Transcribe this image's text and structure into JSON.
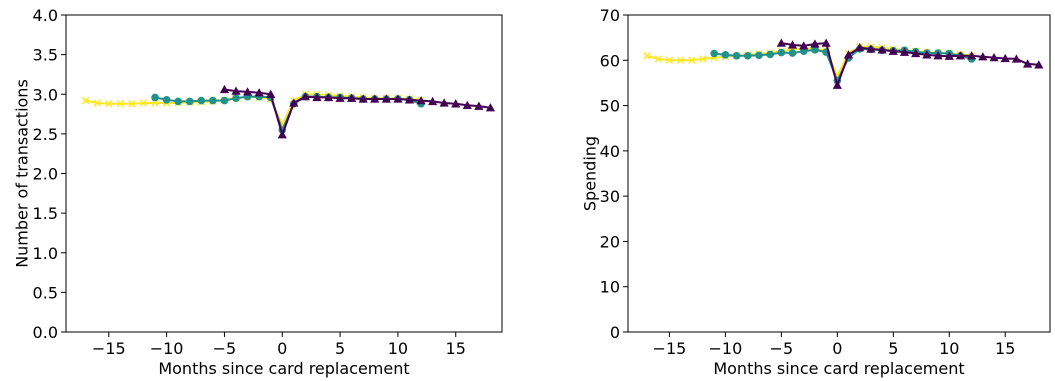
{
  "chart_data": [
    {
      "type": "line",
      "xlabel": "Months since card replacement",
      "ylabel": "Number of transactions",
      "xlim": [
        -18.7,
        19.0
      ],
      "ylim": [
        0.0,
        4.0
      ],
      "xticks": [
        -15,
        -10,
        -5,
        0,
        5,
        10,
        15
      ],
      "xtick_labels": [
        "−15",
        "−10",
        "−5",
        "0",
        "5",
        "10",
        "15"
      ],
      "yticks": [
        0.0,
        0.5,
        1.0,
        1.5,
        2.0,
        2.5,
        3.0,
        3.5,
        4.0
      ],
      "ytick_labels": [
        "0.0",
        "0.5",
        "1.0",
        "1.5",
        "2.0",
        "2.5",
        "3.0",
        "3.5",
        "4.0"
      ],
      "grid": false,
      "series": [
        {
          "color": "#fde725",
          "marker": "x",
          "x": [
            -17,
            -16,
            -15,
            -14,
            -13,
            -12,
            -11,
            -10,
            -9,
            -8,
            -7,
            -6,
            -5,
            -4,
            -3,
            -2,
            -1,
            0,
            1,
            2,
            3,
            4,
            5,
            6,
            7,
            8,
            9,
            10,
            11,
            12
          ],
          "y": [
            2.92,
            2.89,
            2.88,
            2.88,
            2.88,
            2.89,
            2.89,
            2.89,
            2.89,
            2.9,
            2.9,
            2.91,
            2.93,
            2.95,
            2.97,
            2.96,
            2.94,
            2.62,
            2.92,
            3.0,
            3.0,
            2.99,
            2.98,
            2.97,
            2.96,
            2.95,
            2.95,
            2.95,
            2.94,
            2.93
          ]
        },
        {
          "color": "#21918c",
          "marker": "o",
          "x": [
            -11,
            -10,
            -9,
            -8,
            -7,
            -6,
            -5,
            -4,
            -3,
            -2,
            -1,
            0,
            1,
            2,
            3,
            4,
            5,
            6,
            7,
            8,
            9,
            10,
            11,
            12
          ],
          "y": [
            2.96,
            2.93,
            2.91,
            2.91,
            2.92,
            2.92,
            2.92,
            2.95,
            2.97,
            2.97,
            2.96,
            2.55,
            2.88,
            2.97,
            2.97,
            2.96,
            2.96,
            2.95,
            2.94,
            2.94,
            2.94,
            2.94,
            2.93,
            2.88
          ]
        },
        {
          "color": "#440154",
          "marker": "^",
          "x": [
            -5,
            -4,
            -3,
            -2,
            -1,
            0,
            1,
            2,
            3,
            4,
            5,
            6,
            7,
            8,
            9,
            10,
            11,
            12,
            13,
            14,
            15,
            16,
            17,
            18
          ],
          "y": [
            3.06,
            3.04,
            3.03,
            3.02,
            3.0,
            2.49,
            2.89,
            2.97,
            2.96,
            2.96,
            2.95,
            2.95,
            2.94,
            2.94,
            2.94,
            2.94,
            2.93,
            2.92,
            2.91,
            2.89,
            2.88,
            2.86,
            2.85,
            2.83
          ]
        }
      ]
    },
    {
      "type": "line",
      "xlabel": "Months since card replacement",
      "ylabel": "Spending",
      "xlim": [
        -18.7,
        19.0
      ],
      "ylim": [
        0,
        70
      ],
      "xticks": [
        -15,
        -10,
        -5,
        0,
        5,
        10,
        15
      ],
      "xtick_labels": [
        "−15",
        "−10",
        "−5",
        "0",
        "5",
        "10",
        "15"
      ],
      "yticks": [
        0,
        10,
        20,
        30,
        40,
        50,
        60,
        70
      ],
      "ytick_labels": [
        "0",
        "10",
        "20",
        "30",
        "40",
        "50",
        "60",
        "70"
      ],
      "grid": false,
      "series": [
        {
          "color": "#fde725",
          "marker": "x",
          "x": [
            -17,
            -16,
            -15,
            -14,
            -13,
            -12,
            -11,
            -10,
            -9,
            -8,
            -7,
            -6,
            -5,
            -4,
            -3,
            -2,
            -1,
            0,
            1,
            2,
            3,
            4,
            5,
            6,
            7,
            8,
            9,
            10,
            11,
            12
          ],
          "y": [
            61.0,
            60.3,
            60.0,
            60.0,
            60.0,
            60.3,
            60.6,
            60.8,
            61.0,
            61.2,
            61.4,
            61.6,
            62.0,
            62.4,
            62.7,
            62.5,
            62.2,
            56.5,
            61.5,
            63.0,
            63.0,
            62.8,
            62.5,
            62.2,
            62.0,
            61.8,
            61.6,
            61.5,
            61.3,
            61.0
          ]
        },
        {
          "color": "#21918c",
          "marker": "o",
          "x": [
            -11,
            -10,
            -9,
            -8,
            -7,
            -6,
            -5,
            -4,
            -3,
            -2,
            -1,
            0,
            1,
            2,
            3,
            4,
            5,
            6,
            7,
            8,
            9,
            10,
            11,
            12
          ],
          "y": [
            61.5,
            61.2,
            61.0,
            61.0,
            61.1,
            61.3,
            61.7,
            61.6,
            62.0,
            62.3,
            61.8,
            55.5,
            60.5,
            62.5,
            62.4,
            62.2,
            62.1,
            62.2,
            61.9,
            61.6,
            61.6,
            61.5,
            61.0,
            60.3
          ]
        },
        {
          "color": "#440154",
          "marker": "^",
          "x": [
            -5,
            -4,
            -3,
            -2,
            -1,
            0,
            1,
            2,
            3,
            4,
            5,
            6,
            7,
            8,
            9,
            10,
            11,
            12,
            13,
            14,
            15,
            16,
            17,
            18
          ],
          "y": [
            63.8,
            63.4,
            63.2,
            63.6,
            63.8,
            54.5,
            61.2,
            62.8,
            62.5,
            62.3,
            62.0,
            61.8,
            61.5,
            61.2,
            61.0,
            60.9,
            61.0,
            61.0,
            60.8,
            60.6,
            60.4,
            60.3,
            59.2,
            59.0
          ]
        }
      ]
    }
  ]
}
